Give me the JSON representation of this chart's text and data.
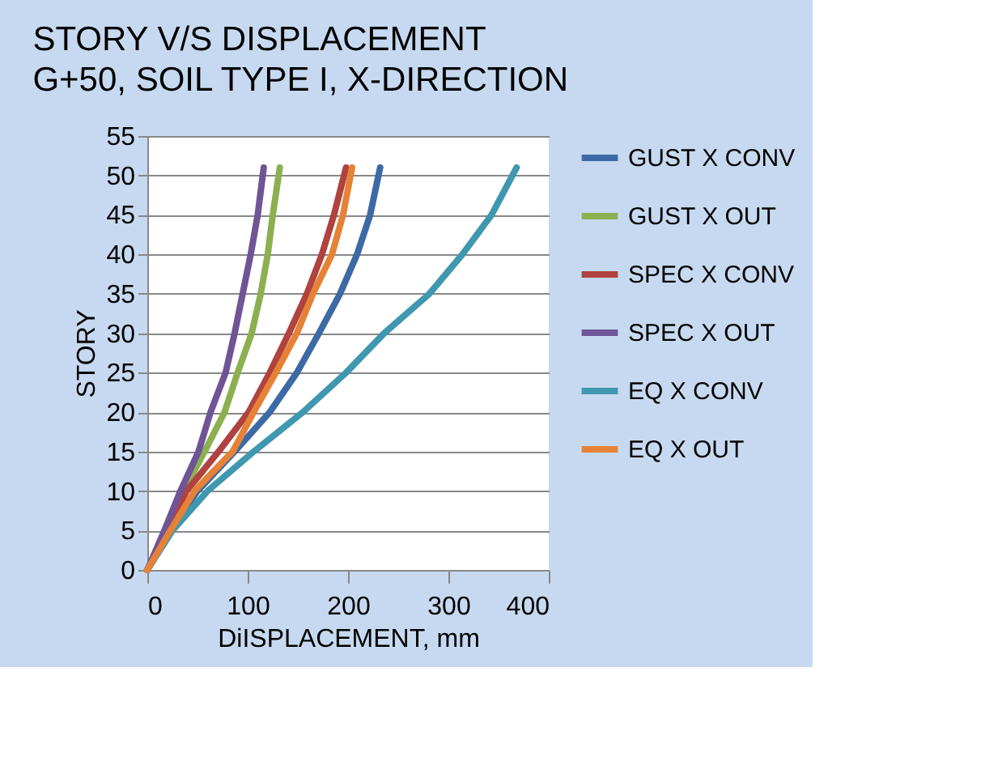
{
  "chart_data": {
    "type": "line",
    "title": "STORY V/S DISPLACEMENT",
    "subtitle": "G+50, SOIL TYPE I, X-DIRECTION",
    "xlabel": "DiISPLACEMENT, mm",
    "ylabel": "STORY",
    "xlim": [
      0,
      400
    ],
    "xticks": [
      0,
      100,
      200,
      300,
      400
    ],
    "ylim": [
      0,
      55
    ],
    "yticks": [
      0,
      5,
      10,
      15,
      20,
      25,
      30,
      35,
      40,
      45,
      50,
      55
    ],
    "grid": "y",
    "legend": "right",
    "marker": "none",
    "line_style": "solid",
    "series": [
      {
        "name": "GUST X CONV",
        "color": "#3d6aa5",
        "x": [
          0,
          23,
          50,
          87,
          122,
          149,
          171,
          192,
          209,
          222,
          232
        ],
        "values": [
          0,
          5,
          10,
          15,
          20,
          25,
          30,
          35,
          40,
          45,
          51
        ]
      },
      {
        "name": "GUST X OUT",
        "color": "#8cb050",
        "x": [
          0,
          19,
          36,
          57,
          77,
          90,
          104,
          113,
          120,
          125,
          132
        ],
        "values": [
          0,
          5,
          10,
          15,
          20,
          25,
          30,
          35,
          40,
          45,
          51
        ]
      },
      {
        "name": "SPEC X CONV",
        "color": "#b0423f",
        "x": [
          0,
          20,
          39,
          71,
          101,
          122,
          141,
          159,
          174,
          186,
          198
        ],
        "values": [
          0,
          5,
          10,
          15,
          20,
          25,
          30,
          35,
          40,
          45,
          51
        ]
      },
      {
        "name": "SPEC X OUT",
        "color": "#6f5496",
        "x": [
          0,
          17,
          33,
          51,
          63,
          78,
          87,
          95,
          103,
          110,
          116
        ],
        "values": [
          0,
          5,
          10,
          15,
          20,
          25,
          30,
          35,
          40,
          45,
          51
        ]
      },
      {
        "name": "EQ X CONV",
        "color": "#3f97b0",
        "x": [
          0,
          25,
          60,
          106,
          155,
          198,
          236,
          281,
          314,
          343,
          368
        ],
        "values": [
          0,
          5,
          10,
          15,
          20,
          25,
          30,
          35,
          40,
          45,
          51
        ]
      },
      {
        "name": "EQ X OUT",
        "color": "#e58237",
        "x": [
          0,
          23,
          47,
          85,
          106,
          128,
          149,
          165,
          184,
          195,
          204
        ],
        "values": [
          0,
          5,
          10,
          15,
          20,
          25,
          30,
          35,
          40,
          45,
          51
        ]
      }
    ]
  }
}
